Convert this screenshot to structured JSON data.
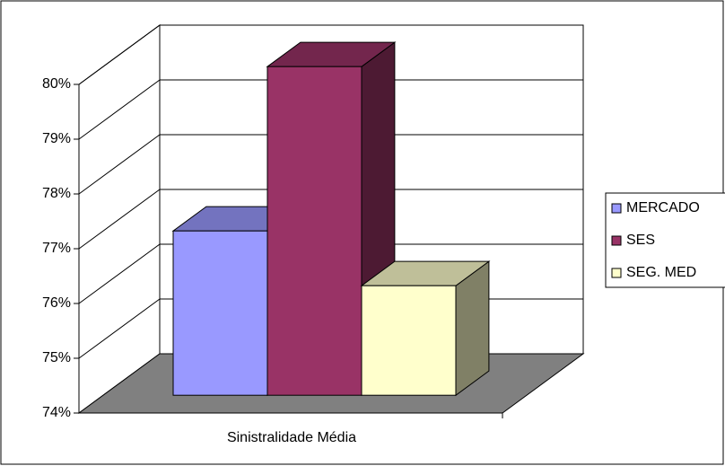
{
  "chart_data": {
    "type": "bar3d",
    "categories": [
      "Sinistralidade Média"
    ],
    "series": [
      {
        "name": "MERCADO",
        "color": "#9999ff",
        "values": [
          77
        ]
      },
      {
        "name": "SES",
        "color": "#993366",
        "values": [
          80
        ]
      },
      {
        "name": "SEG. MED",
        "color": "#ffffcc",
        "values": [
          76
        ]
      }
    ],
    "ylim": [
      74,
      80
    ],
    "yticks": [
      {
        "value": 74,
        "label": "74%"
      },
      {
        "value": 75,
        "label": "75%"
      },
      {
        "value": 76,
        "label": "76%"
      },
      {
        "value": 77,
        "label": "77%"
      },
      {
        "value": 78,
        "label": "78%"
      },
      {
        "value": 79,
        "label": "79%"
      },
      {
        "value": 80,
        "label": "80%"
      }
    ],
    "grid": true
  }
}
